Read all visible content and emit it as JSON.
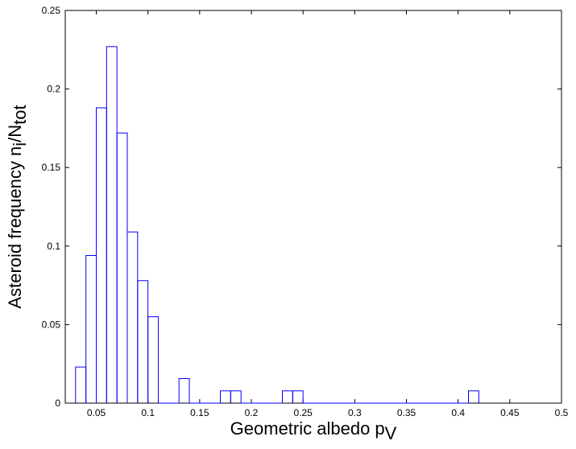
{
  "chart_data": {
    "type": "histogram",
    "xlabel": [
      "Geometric albedo p",
      "V"
    ],
    "ylabel": [
      "Asteroid frequency n",
      "i",
      "/N",
      "tot"
    ],
    "bins": [
      0.03,
      0.04,
      0.05,
      0.06,
      0.07,
      0.08,
      0.09,
      0.1,
      0.11,
      0.12,
      0.13,
      0.14,
      0.15,
      0.16,
      0.17,
      0.18,
      0.19,
      0.2,
      0.21,
      0.22,
      0.23,
      0.24,
      0.25,
      0.26,
      0.27,
      0.28,
      0.29,
      0.3,
      0.31,
      0.32,
      0.33,
      0.34,
      0.35,
      0.36,
      0.37,
      0.38,
      0.39,
      0.4,
      0.41,
      0.42
    ],
    "values": [
      0.023,
      0.094,
      0.188,
      0.227,
      0.172,
      0.109,
      0.078,
      0.055,
      0,
      0,
      0.0156,
      0,
      0,
      0,
      0.0078,
      0.0078,
      0,
      0,
      0,
      0,
      0.0078,
      0.0078,
      0,
      0,
      0,
      0,
      0,
      0,
      0,
      0,
      0,
      0,
      0,
      0,
      0,
      0,
      0,
      0,
      0.0078
    ],
    "color": "#0000ff",
    "xlim": [
      0.02,
      0.5
    ],
    "xticks": [
      0.05,
      0.1,
      0.15,
      0.2,
      0.25,
      0.3,
      0.35,
      0.4,
      0.45,
      0.5
    ],
    "ylim": [
      0,
      0.25
    ],
    "yticks": [
      0,
      0.05,
      0.1,
      0.15,
      0.2,
      0.25
    ]
  }
}
